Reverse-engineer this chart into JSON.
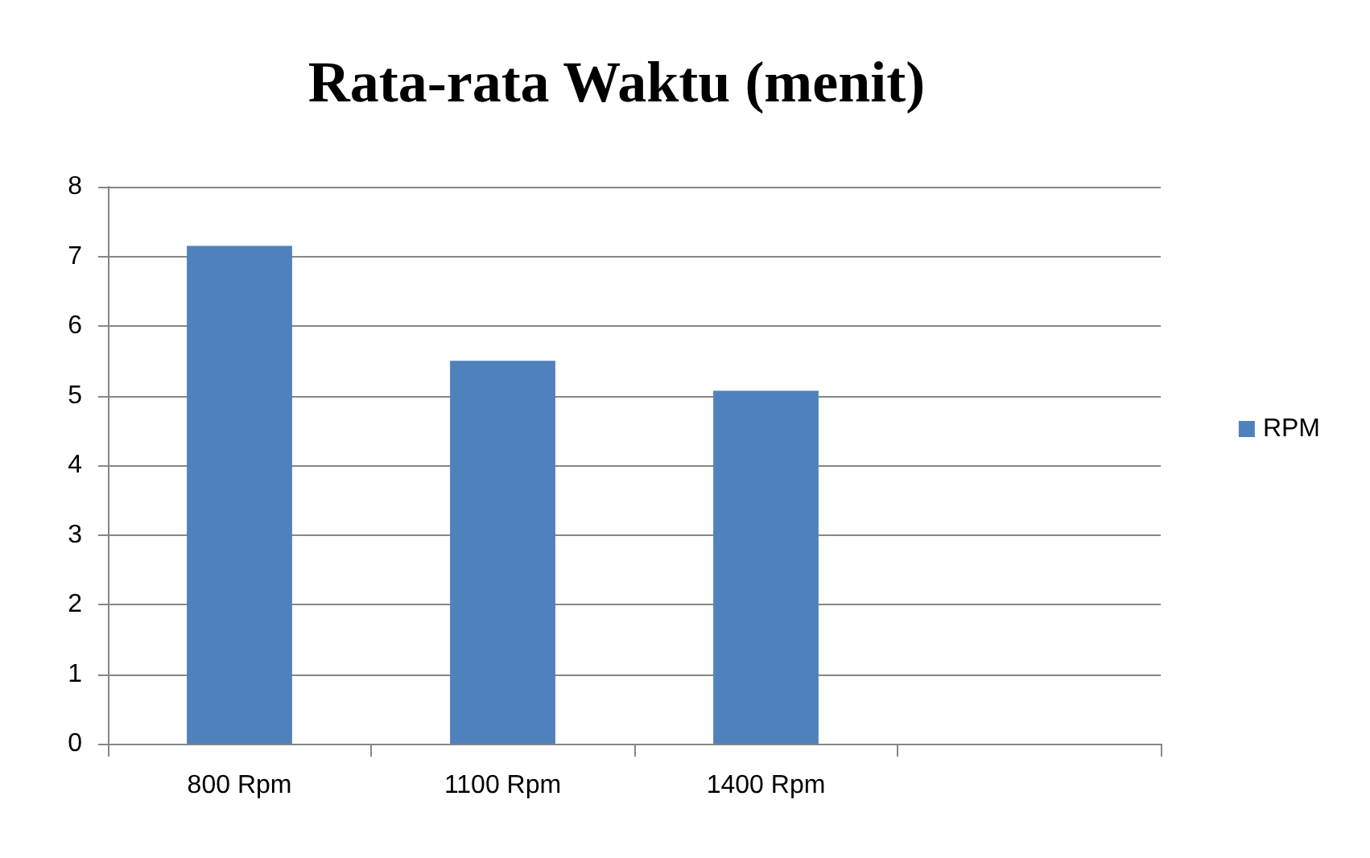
{
  "chart_data": {
    "type": "bar",
    "title": "Rata-rata Waktu (menit)",
    "categories": [
      "800 Rpm",
      "1100 Rpm",
      "1400 Rpm",
      null
    ],
    "series": [
      {
        "name": "RPM",
        "color": "#4f81bd",
        "values": [
          7.15,
          5.5,
          5.07,
          null
        ]
      }
    ],
    "ylim": [
      0,
      8
    ],
    "yticks": [
      0,
      1,
      2,
      3,
      4,
      5,
      6,
      7,
      8
    ],
    "grid": "y",
    "legend": "right"
  }
}
